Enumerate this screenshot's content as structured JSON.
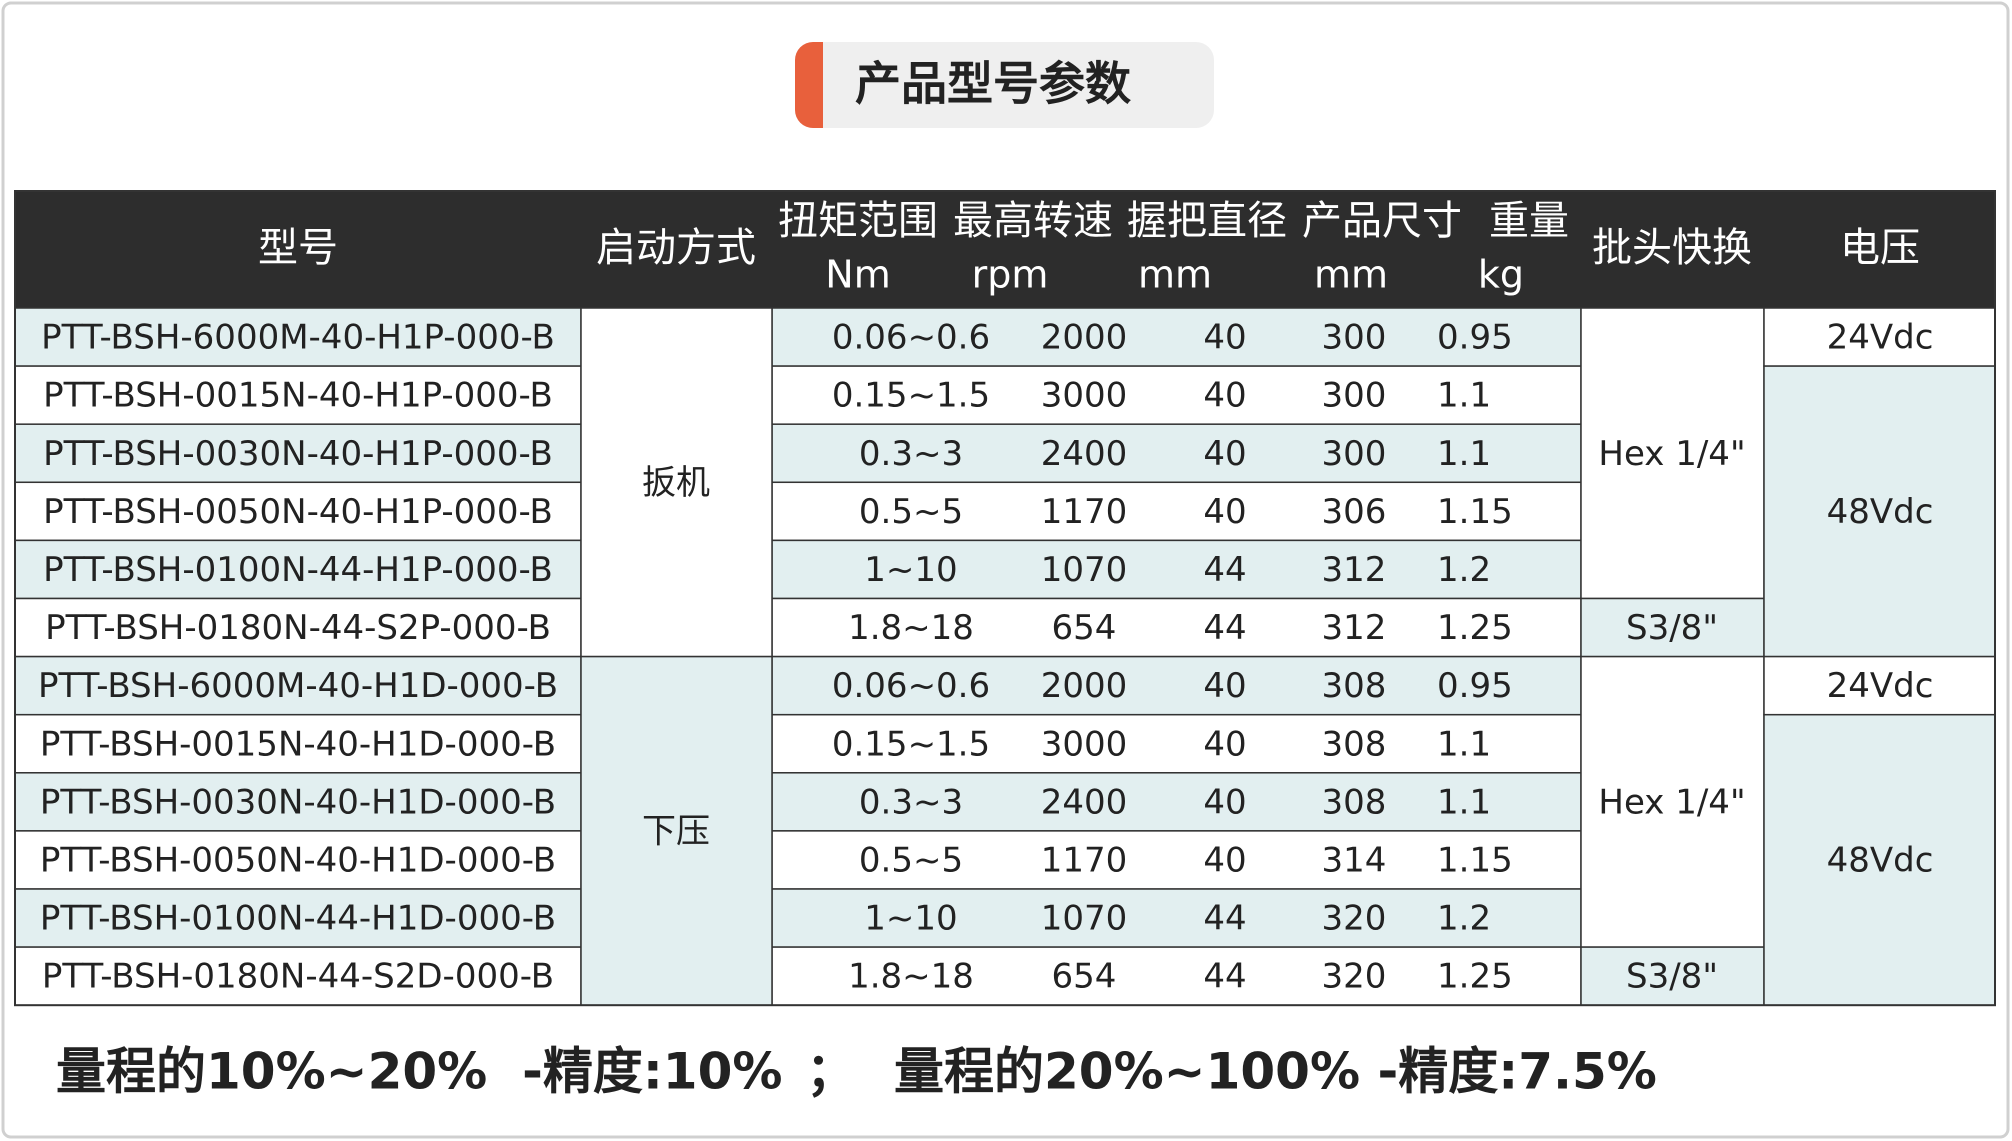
{
  "title": "产品型号参数",
  "table": {
    "headers": [
      {
        "label": "型号"
      },
      {
        "label": "启动方式"
      },
      {
        "label": "扭矩范围",
        "unit": "Nm"
      },
      {
        "label": "最高转速",
        "unit": "rpm"
      },
      {
        "label": "握把直径",
        "unit": "mm"
      },
      {
        "label": "产品尺寸",
        "unit": "mm"
      },
      {
        "label": "重量",
        "unit": "kg"
      },
      {
        "label": "批头快换"
      },
      {
        "label": "电压"
      }
    ],
    "rows": [
      [
        "PTT-BSH-6000M-40-H1P-000-B",
        "扳机",
        "0.06~0.6",
        2000,
        40,
        300,
        0.95,
        "Hex 1/4\"",
        "24Vdc"
      ],
      [
        "PTT-BSH-0015N-40-H1P-000-B",
        null,
        "0.15~1.5",
        3000,
        40,
        300,
        1.1,
        null,
        "48Vdc"
      ],
      [
        "PTT-BSH-0030N-40-H1P-000-B",
        null,
        "0.3~3",
        2400,
        40,
        300,
        1.1,
        null,
        null
      ],
      [
        "PTT-BSH-0050N-40-H1P-000-B",
        null,
        "0.5~5",
        1170,
        40,
        306,
        1.15,
        null,
        null
      ],
      [
        "PTT-BSH-0100N-44-H1P-000-B",
        null,
        "1~10",
        1070,
        44,
        312,
        1.2,
        null,
        null
      ],
      [
        "PTT-BSH-0180N-44-S2P-000-B",
        null,
        "1.8~18",
        654,
        44,
        312,
        1.25,
        "S3/8\"",
        null
      ],
      [
        "PTT-BSH-6000M-40-H1D-000-B",
        "下压",
        "0.06~0.6",
        2000,
        40,
        308,
        0.95,
        "Hex 1/4\"",
        "24Vdc"
      ],
      [
        "PTT-BSH-0015N-40-H1D-000-B",
        null,
        "0.15~1.5",
        3000,
        40,
        308,
        1.1,
        null,
        "48Vdc"
      ],
      [
        "PTT-BSH-0030N-40-H1D-000-B",
        null,
        "0.3~3",
        2400,
        40,
        308,
        1.1,
        null,
        null
      ],
      [
        "PTT-BSH-0050N-40-H1D-000-B",
        null,
        "0.5~5",
        1170,
        40,
        314,
        1.15,
        null,
        null
      ],
      [
        "PTT-BSH-0100N-44-H1D-000-B",
        null,
        "1~10",
        1070,
        44,
        320,
        1.2,
        null,
        null
      ],
      [
        "PTT-BSH-0180N-44-S2D-000-B",
        null,
        "1.8~18",
        654,
        44,
        320,
        1.25,
        "S3/8\"",
        null
      ]
    ]
  },
  "footer": [
    "量程的10%~20%  -精度:10%",
    "；",
    "量程的20%~100% -精度:7.5%"
  ]
}
